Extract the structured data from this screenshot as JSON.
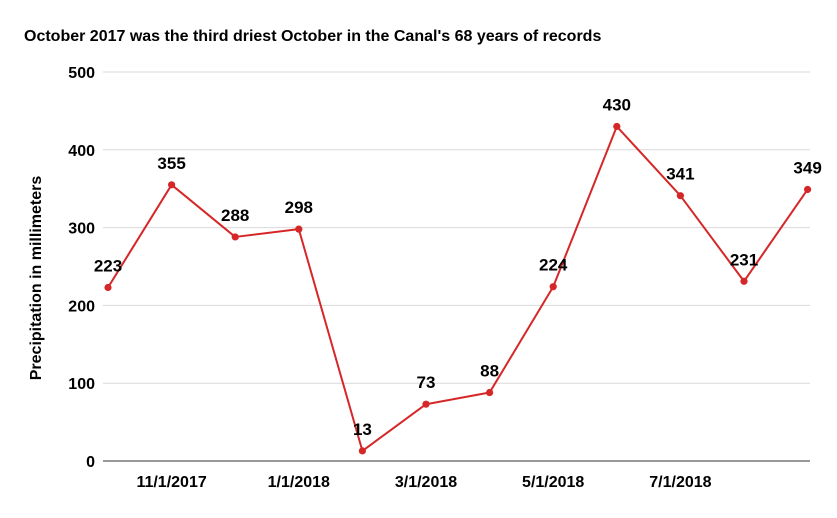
{
  "chart_data": {
    "type": "line",
    "title": "October 2017 was the third driest October in the Canal's 68 years of records",
    "xlabel": "",
    "ylabel": "Precipitation in millimeters",
    "ylim": [
      0,
      500
    ],
    "yticks": [
      0,
      100,
      200,
      300,
      400,
      500
    ],
    "x": [
      "10/1/2017",
      "11/1/2017",
      "12/1/2017",
      "1/1/2018",
      "2/1/2018",
      "3/1/2018",
      "4/1/2018",
      "5/1/2018",
      "6/1/2018",
      "7/1/2018",
      "8/1/2018",
      "9/1/2018"
    ],
    "x_tick_labels": [
      "11/1/2017",
      "1/1/2018",
      "3/1/2018",
      "5/1/2018",
      "7/1/2018"
    ],
    "x_tick_indices": [
      1,
      3,
      5,
      7,
      9
    ],
    "series": [
      {
        "name": "",
        "values": [
          223,
          355,
          288,
          298,
          13,
          73,
          88,
          224,
          430,
          341,
          231,
          349
        ],
        "data_labels": [
          "223",
          "355",
          "288",
          "298",
          "13",
          "73",
          "88",
          "224",
          "430",
          "341",
          "231",
          "349"
        ],
        "color": "#d62728"
      }
    ],
    "grid": true,
    "legend": "none"
  }
}
